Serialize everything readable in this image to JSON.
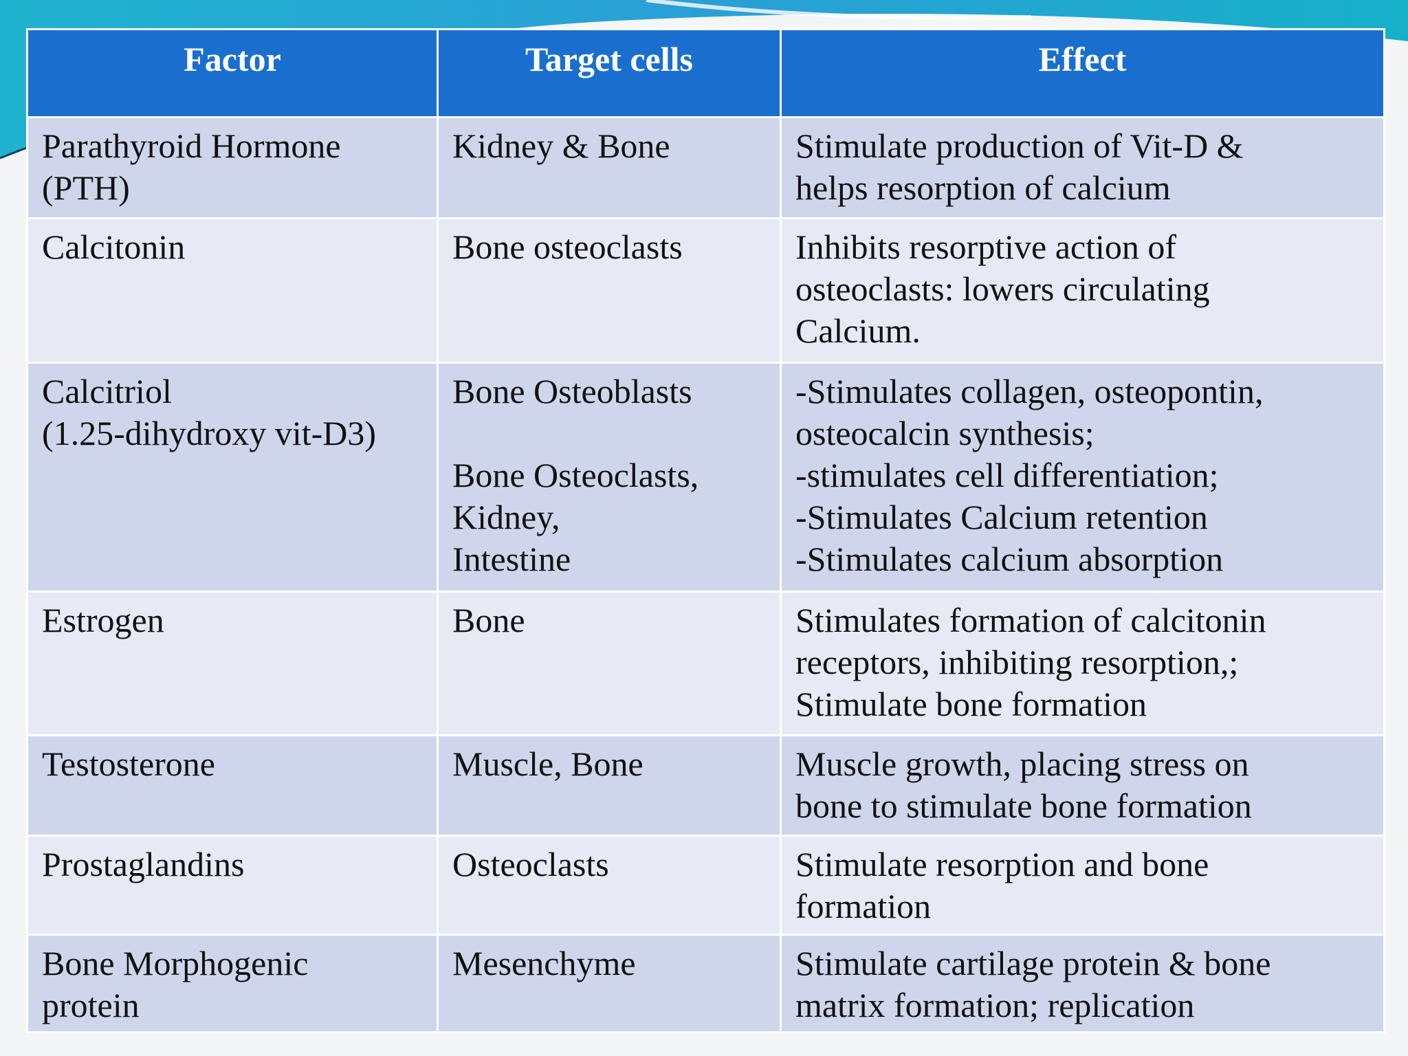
{
  "colors": {
    "header_bg": "#1a6fce",
    "header_text": "#ffffff",
    "row_odd": "#cfd6ec",
    "row_even": "#e7eaf5",
    "accent_teal": "#1fb3cf"
  },
  "table": {
    "headers": [
      "Factor",
      "Target cells",
      "Effect"
    ],
    "rows": [
      {
        "factor": [
          "Parathyroid Hormone",
          "(PTH)"
        ],
        "targets": [
          "Kidney & Bone"
        ],
        "effect": [
          "Stimulate production of Vit-D &",
          "helps resorption of calcium"
        ]
      },
      {
        "factor": [
          "Calcitonin"
        ],
        "targets": [
          "Bone osteoclasts"
        ],
        "effect": [
          "Inhibits resorptive action of",
          "osteoclasts: lowers circulating",
          "Calcium."
        ]
      },
      {
        "factor": [
          "Calcitriol",
          "(1.25-dihydroxy vit-D3)"
        ],
        "targets": [
          "Bone Osteoblasts",
          "",
          "Bone Osteoclasts,",
          "Kidney,",
          "Intestine"
        ],
        "effect": [
          "-Stimulates collagen, osteopontin,",
          "osteocalcin synthesis;",
          "-stimulates cell differentiation;",
          "-Stimulates Calcium retention",
          "-Stimulates calcium absorption"
        ]
      },
      {
        "factor": [
          "Estrogen"
        ],
        "targets": [
          "Bone"
        ],
        "effect": [
          "Stimulates formation of calcitonin",
          "receptors, inhibiting resorption,;",
          "Stimulate bone formation"
        ]
      },
      {
        "factor": [
          "Testosterone"
        ],
        "targets": [
          "Muscle, Bone"
        ],
        "effect": [
          "Muscle growth, placing stress on",
          "bone to stimulate bone formation"
        ]
      },
      {
        "factor": [
          "Prostaglandins"
        ],
        "targets": [
          "Osteoclasts"
        ],
        "effect": [
          "Stimulate resorption and bone",
          "formation"
        ]
      },
      {
        "factor": [
          "Bone Morphogenic",
          "protein"
        ],
        "targets": [
          "Mesenchyme"
        ],
        "effect": [
          "Stimulate cartilage protein & bone",
          "matrix formation; replication"
        ]
      }
    ]
  }
}
